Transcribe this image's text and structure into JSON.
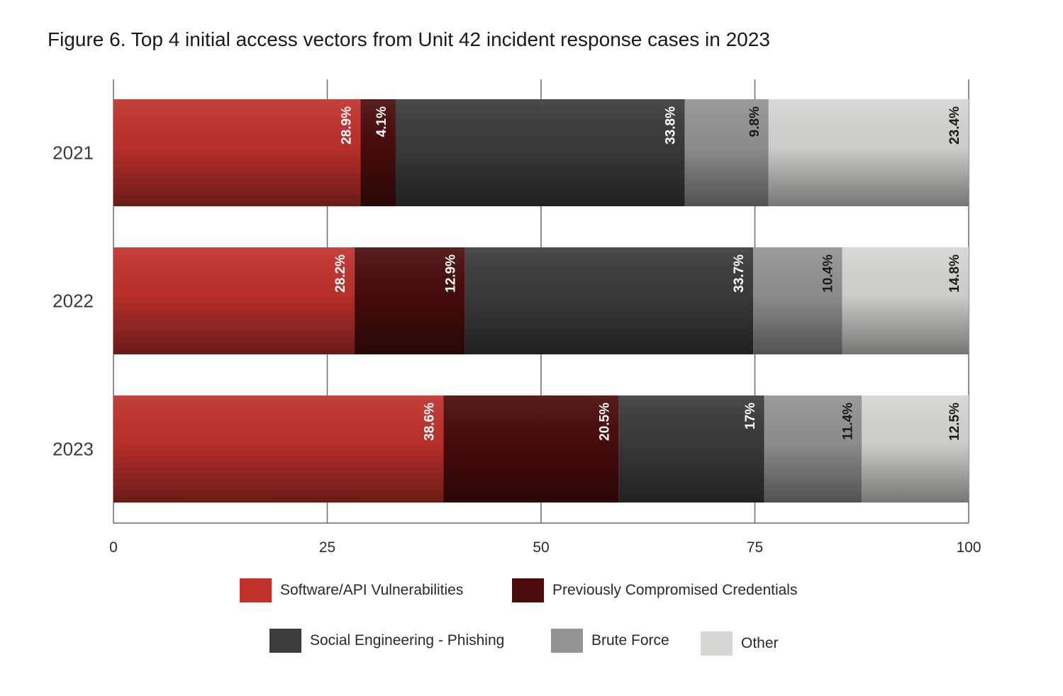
{
  "chart_data": {
    "type": "bar",
    "orientation": "horizontal",
    "stacked": true,
    "title": "Figure 6. Top 4 initial access vectors from Unit 42 incident response cases in 2023",
    "categories": [
      "2021",
      "2022",
      "2023"
    ],
    "xlim": [
      0,
      100
    ],
    "xticks": [
      0,
      25,
      50,
      75,
      100
    ],
    "grid": "vertical",
    "legend_position": "bottom",
    "series": [
      {
        "name": "Software/API Vulnerabilities",
        "color": "#c0312b",
        "values": [
          28.9,
          28.2,
          38.6
        ],
        "labels": [
          "28.9%",
          "28.2%",
          "38.6%"
        ],
        "label_color": "#ffffff"
      },
      {
        "name": "Previously Compromised Credentials",
        "color": "#4a0c0c",
        "values": [
          4.1,
          12.9,
          20.5
        ],
        "labels": [
          "4.1%",
          "12.9%",
          "20.5%"
        ],
        "label_color": "#ffffff"
      },
      {
        "name": "Social Engineering - Phishing",
        "color": "#3a3c3c",
        "values": [
          33.8,
          33.7,
          17
        ],
        "labels": [
          "33.8%",
          "33.7%",
          "17%"
        ],
        "label_color": "#ffffff"
      },
      {
        "name": "Brute Force",
        "color": "#939393",
        "values": [
          9.8,
          10.4,
          11.4
        ],
        "labels": [
          "9.8%",
          "10.4%",
          "11.4%"
        ],
        "label_color": "#1a1a1a"
      },
      {
        "name": "Other",
        "color": "#d8d6d2",
        "values": [
          23.4,
          14.8,
          12.5
        ],
        "labels": [
          "23.4%",
          "14.8%",
          "12.5%"
        ],
        "label_color": "#1a1a1a"
      }
    ]
  }
}
